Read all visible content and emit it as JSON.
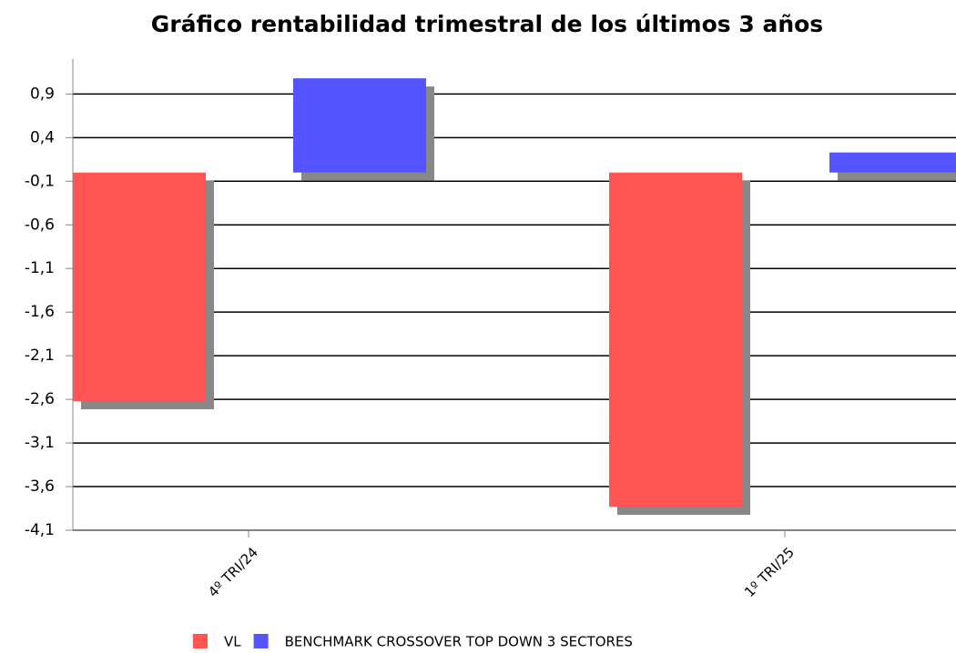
{
  "chart_data": {
    "type": "bar",
    "title": "Gráfico rentabilidad trimestral de los últimos 3 años",
    "categories": [
      "4º TRI/24",
      "1º TRI/25"
    ],
    "series": [
      {
        "name": "VL",
        "color": "#ff5555",
        "values": [
          -2.62,
          -3.83
        ]
      },
      {
        "name": "BENCHMARK CROSSOVER TOP DOWN 3 SECTORES",
        "color": "#5555ff",
        "values": [
          1.08,
          0.23
        ]
      }
    ],
    "ylim": [
      -4.1,
      1.3
    ],
    "yticks": [
      {
        "value": 0.9,
        "label": "0,9"
      },
      {
        "value": 0.4,
        "label": "0,4"
      },
      {
        "value": -0.1,
        "label": "-0,1"
      },
      {
        "value": -0.6,
        "label": "-0,6"
      },
      {
        "value": -1.1,
        "label": "-1,1"
      },
      {
        "value": -1.6,
        "label": "-1,6"
      },
      {
        "value": -2.1,
        "label": "-2,1"
      },
      {
        "value": -2.6,
        "label": "-2,6"
      },
      {
        "value": -3.1,
        "label": "-3,1"
      },
      {
        "value": -3.6,
        "label": "-3,6"
      },
      {
        "value": -4.1,
        "label": "-4,1"
      }
    ],
    "grid": true
  }
}
